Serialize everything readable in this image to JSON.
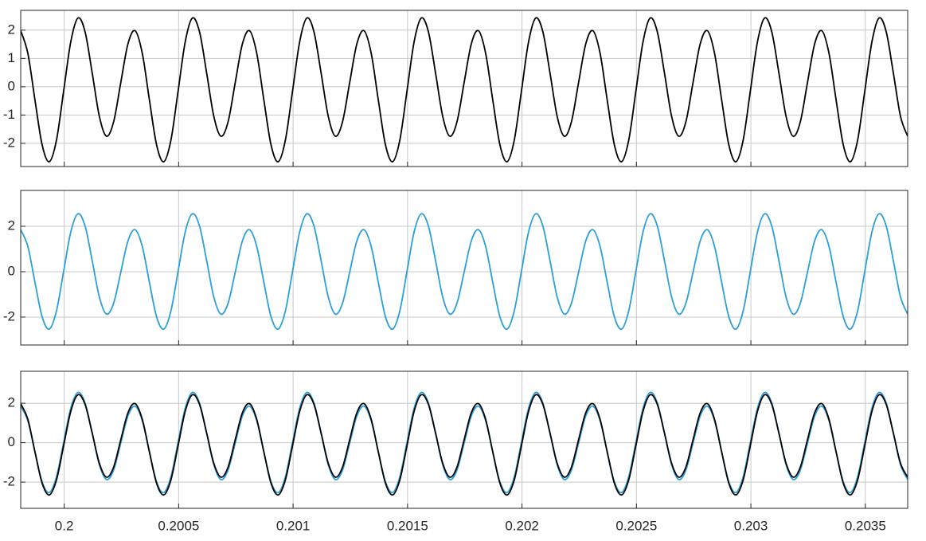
{
  "chart_data": [
    {
      "type": "line",
      "show_xtick_labels": false,
      "grid": true,
      "xlim": [
        0.19981,
        0.203685
      ],
      "xticks": [
        0.2,
        0.2005,
        0.201,
        0.2015,
        0.202,
        0.2025,
        0.203,
        0.2035
      ],
      "ylim": [
        -2.82,
        2.7
      ],
      "yticks": [
        -2,
        -1,
        0,
        1,
        2
      ],
      "x": [
        0.19981,
        0.19984125,
        0.1998725,
        0.19990375,
        0.199935,
        0.19996625,
        0.1999975,
        0.20002875,
        0.20006,
        0.20009125,
        0.2001225,
        0.20015375,
        0.200185,
        0.20021625,
        0.2002475,
        0.20027875,
        0.20031,
        0.20034125,
        0.2003725,
        0.20040375,
        0.200435,
        0.20046625,
        0.2004975,
        0.20052875,
        0.20056,
        0.20059125,
        0.2006225,
        0.20065375,
        0.200685,
        0.20071625,
        0.2007475,
        0.20077875,
        0.20081,
        0.20084125,
        0.2008725,
        0.20090375,
        0.200935,
        0.20096625,
        0.2009975,
        0.20102875,
        0.20106,
        0.20109125,
        0.2011225,
        0.20115375,
        0.201185,
        0.20121625,
        0.2012475,
        0.20127875,
        0.20131,
        0.20134125,
        0.2013725,
        0.20140375,
        0.201435,
        0.20146625,
        0.2014975,
        0.20152875,
        0.20156,
        0.20159125,
        0.2016225,
        0.20165375,
        0.201685,
        0.20171625,
        0.2017475,
        0.20177875,
        0.20181,
        0.20184125,
        0.2018725,
        0.20190375,
        0.201935,
        0.20196625,
        0.2019975,
        0.20202875,
        0.20206,
        0.20209125,
        0.2021225,
        0.20215375,
        0.202185,
        0.20221625,
        0.2022475,
        0.20227875,
        0.20231,
        0.20234125,
        0.2023725,
        0.20240375,
        0.202435,
        0.20246625,
        0.2024975,
        0.20252875,
        0.20256,
        0.20259125,
        0.2026225,
        0.20265375,
        0.202685,
        0.20271625,
        0.2027475,
        0.20277875,
        0.20281,
        0.20284125,
        0.2028725,
        0.20290375,
        0.202935,
        0.20296625,
        0.2029975,
        0.20302875,
        0.20306,
        0.20309125,
        0.2031225,
        0.20315375,
        0.203185,
        0.20321625,
        0.2032475,
        0.20327875,
        0.20331,
        0.20334125,
        0.2033725,
        0.20340375,
        0.203435,
        0.20346625,
        0.2034975,
        0.20352875,
        0.20356,
        0.20359125,
        0.2036225,
        0.20365375,
        0.203685
      ],
      "series": [
        {
          "color": "#000000",
          "values": [
            1.98,
            1.18,
            -0.48,
            -2.06,
            -2.65,
            -1.89,
            -0.16,
            1.59,
            2.43,
            1.94,
            0.48,
            -1.05,
            -1.75,
            -1.23,
            0.16,
            1.52,
            1.98,
            1.18,
            -0.48,
            -2.06,
            -2.65,
            -1.89,
            -0.16,
            1.59,
            2.43,
            1.94,
            0.48,
            -1.05,
            -1.75,
            -1.23,
            0.16,
            1.52,
            1.98,
            1.18,
            -0.48,
            -2.06,
            -2.65,
            -1.89,
            -0.16,
            1.59,
            2.43,
            1.94,
            0.48,
            -1.05,
            -1.75,
            -1.23,
            0.16,
            1.52,
            1.98,
            1.18,
            -0.48,
            -2.06,
            -2.65,
            -1.89,
            -0.16,
            1.59,
            2.43,
            1.94,
            0.48,
            -1.05,
            -1.75,
            -1.23,
            0.16,
            1.52,
            1.98,
            1.18,
            -0.48,
            -2.06,
            -2.65,
            -1.89,
            -0.16,
            1.59,
            2.43,
            1.94,
            0.48,
            -1.05,
            -1.75,
            -1.23,
            0.16,
            1.52,
            1.98,
            1.18,
            -0.48,
            -2.06,
            -2.65,
            -1.89,
            -0.16,
            1.59,
            2.43,
            1.94,
            0.48,
            -1.05,
            -1.75,
            -1.23,
            0.16,
            1.52,
            1.98,
            1.18,
            -0.48,
            -2.06,
            -2.65,
            -1.89,
            -0.16,
            1.59,
            2.43,
            1.94,
            0.48,
            -1.05,
            -1.75,
            -1.23,
            0.16,
            1.52,
            1.98,
            1.18,
            -0.48,
            -2.06,
            -2.65,
            -1.89,
            -0.16,
            1.59,
            2.43,
            1.94,
            0.48,
            -1.05,
            -1.75
          ]
        }
      ]
    },
    {
      "type": "line",
      "show_xtick_labels": false,
      "grid": true,
      "xlim": [
        0.19981,
        0.203685
      ],
      "xticks": [
        0.2,
        0.2005,
        0.201,
        0.2015,
        0.202,
        0.2025,
        0.203,
        0.2035
      ],
      "ylim": [
        -3.23,
        3.58
      ],
      "yticks": [
        -2,
        0,
        2
      ],
      "x": [
        0.19981,
        0.19984125,
        0.1998725,
        0.19990375,
        0.199935,
        0.19996625,
        0.1999975,
        0.20002875,
        0.20006,
        0.20009125,
        0.2001225,
        0.20015375,
        0.200185,
        0.20021625,
        0.2002475,
        0.20027875,
        0.20031,
        0.20034125,
        0.2003725,
        0.20040375,
        0.200435,
        0.20046625,
        0.2004975,
        0.20052875,
        0.20056,
        0.20059125,
        0.2006225,
        0.20065375,
        0.200685,
        0.20071625,
        0.2007475,
        0.20077875,
        0.20081,
        0.20084125,
        0.2008725,
        0.20090375,
        0.200935,
        0.20096625,
        0.2009975,
        0.20102875,
        0.20106,
        0.20109125,
        0.2011225,
        0.20115375,
        0.201185,
        0.20121625,
        0.2012475,
        0.20127875,
        0.20131,
        0.20134125,
        0.2013725,
        0.20140375,
        0.201435,
        0.20146625,
        0.2014975,
        0.20152875,
        0.20156,
        0.20159125,
        0.2016225,
        0.20165375,
        0.201685,
        0.20171625,
        0.2017475,
        0.20177875,
        0.20181,
        0.20184125,
        0.2018725,
        0.20190375,
        0.201935,
        0.20196625,
        0.2019975,
        0.20202875,
        0.20206,
        0.20209125,
        0.2021225,
        0.20215375,
        0.202185,
        0.20221625,
        0.2022475,
        0.20227875,
        0.20231,
        0.20234125,
        0.2023725,
        0.20240375,
        0.202435,
        0.20246625,
        0.2024975,
        0.20252875,
        0.20256,
        0.20259125,
        0.2026225,
        0.20265375,
        0.202685,
        0.20271625,
        0.2027475,
        0.20277875,
        0.20281,
        0.20284125,
        0.2028725,
        0.20290375,
        0.202935,
        0.20296625,
        0.2029975,
        0.20302875,
        0.20306,
        0.20309125,
        0.2031225,
        0.20315375,
        0.203185,
        0.20321625,
        0.2032475,
        0.20327875,
        0.20331,
        0.20334125,
        0.2033725,
        0.20340375,
        0.203435,
        0.20346625,
        0.2034975,
        0.20352875,
        0.20356,
        0.20359125,
        0.2036225,
        0.20365375,
        0.203685
      ],
      "series": [
        {
          "color": "#2a9fd8",
          "values": [
            1.85,
            1.11,
            -0.48,
            -1.99,
            -2.53,
            -1.73,
            0.01,
            1.75,
            2.55,
            2.01,
            0.48,
            -1.12,
            -1.87,
            -1.38,
            -0.01,
            1.36,
            1.85,
            1.11,
            -0.48,
            -1.99,
            -2.53,
            -1.73,
            0.01,
            1.75,
            2.55,
            2.01,
            0.48,
            -1.12,
            -1.87,
            -1.38,
            -0.01,
            1.36,
            1.85,
            1.11,
            -0.48,
            -1.99,
            -2.53,
            -1.73,
            0.01,
            1.75,
            2.55,
            2.01,
            0.48,
            -1.12,
            -1.87,
            -1.38,
            -0.01,
            1.36,
            1.85,
            1.11,
            -0.48,
            -1.99,
            -2.53,
            -1.73,
            0.01,
            1.75,
            2.55,
            2.01,
            0.48,
            -1.12,
            -1.87,
            -1.38,
            -0.01,
            1.36,
            1.85,
            1.11,
            -0.48,
            -1.99,
            -2.53,
            -1.73,
            0.01,
            1.75,
            2.55,
            2.01,
            0.48,
            -1.12,
            -1.87,
            -1.38,
            -0.01,
            1.36,
            1.85,
            1.11,
            -0.48,
            -1.99,
            -2.53,
            -1.73,
            0.01,
            1.75,
            2.55,
            2.01,
            0.48,
            -1.12,
            -1.87,
            -1.38,
            -0.01,
            1.36,
            1.85,
            1.11,
            -0.48,
            -1.99,
            -2.53,
            -1.73,
            0.01,
            1.75,
            2.55,
            2.01,
            0.48,
            -1.12,
            -1.87,
            -1.38,
            -0.01,
            1.36,
            1.85,
            1.11,
            -0.48,
            -1.99,
            -2.53,
            -1.73,
            0.01,
            1.75,
            2.55,
            2.01,
            0.48,
            -1.12,
            -1.87
          ]
        }
      ]
    },
    {
      "type": "line",
      "show_xtick_labels": true,
      "grid": true,
      "xlim": [
        0.19981,
        0.203685
      ],
      "xticks": [
        0.2,
        0.2005,
        0.201,
        0.2015,
        0.202,
        0.2025,
        0.203,
        0.2035
      ],
      "ylim": [
        -3.33,
        3.62
      ],
      "yticks": [
        -2,
        0,
        2
      ],
      "x": [
        0.19981,
        0.19984125,
        0.1998725,
        0.19990375,
        0.199935,
        0.19996625,
        0.1999975,
        0.20002875,
        0.20006,
        0.20009125,
        0.2001225,
        0.20015375,
        0.200185,
        0.20021625,
        0.2002475,
        0.20027875,
        0.20031,
        0.20034125,
        0.2003725,
        0.20040375,
        0.200435,
        0.20046625,
        0.2004975,
        0.20052875,
        0.20056,
        0.20059125,
        0.2006225,
        0.20065375,
        0.200685,
        0.20071625,
        0.2007475,
        0.20077875,
        0.20081,
        0.20084125,
        0.2008725,
        0.20090375,
        0.200935,
        0.20096625,
        0.2009975,
        0.20102875,
        0.20106,
        0.20109125,
        0.2011225,
        0.20115375,
        0.201185,
        0.20121625,
        0.2012475,
        0.20127875,
        0.20131,
        0.20134125,
        0.2013725,
        0.20140375,
        0.201435,
        0.20146625,
        0.2014975,
        0.20152875,
        0.20156,
        0.20159125,
        0.2016225,
        0.20165375,
        0.201685,
        0.20171625,
        0.2017475,
        0.20177875,
        0.20181,
        0.20184125,
        0.2018725,
        0.20190375,
        0.201935,
        0.20196625,
        0.2019975,
        0.20202875,
        0.20206,
        0.20209125,
        0.2021225,
        0.20215375,
        0.202185,
        0.20221625,
        0.2022475,
        0.20227875,
        0.20231,
        0.20234125,
        0.2023725,
        0.20240375,
        0.202435,
        0.20246625,
        0.2024975,
        0.20252875,
        0.20256,
        0.20259125,
        0.2026225,
        0.20265375,
        0.202685,
        0.20271625,
        0.2027475,
        0.20277875,
        0.20281,
        0.20284125,
        0.2028725,
        0.20290375,
        0.202935,
        0.20296625,
        0.2029975,
        0.20302875,
        0.20306,
        0.20309125,
        0.2031225,
        0.20315375,
        0.203185,
        0.20321625,
        0.2032475,
        0.20327875,
        0.20331,
        0.20334125,
        0.2033725,
        0.20340375,
        0.203435,
        0.20346625,
        0.2034975,
        0.20352875,
        0.20356,
        0.20359125,
        0.2036225,
        0.20365375,
        0.203685
      ],
      "series": [
        {
          "color": "#2a9fd8",
          "values": [
            1.85,
            1.11,
            -0.48,
            -1.99,
            -2.53,
            -1.73,
            0.01,
            1.75,
            2.55,
            2.01,
            0.48,
            -1.12,
            -1.87,
            -1.38,
            -0.01,
            1.36,
            1.85,
            1.11,
            -0.48,
            -1.99,
            -2.53,
            -1.73,
            0.01,
            1.75,
            2.55,
            2.01,
            0.48,
            -1.12,
            -1.87,
            -1.38,
            -0.01,
            1.36,
            1.85,
            1.11,
            -0.48,
            -1.99,
            -2.53,
            -1.73,
            0.01,
            1.75,
            2.55,
            2.01,
            0.48,
            -1.12,
            -1.87,
            -1.38,
            -0.01,
            1.36,
            1.85,
            1.11,
            -0.48,
            -1.99,
            -2.53,
            -1.73,
            0.01,
            1.75,
            2.55,
            2.01,
            0.48,
            -1.12,
            -1.87,
            -1.38,
            -0.01,
            1.36,
            1.85,
            1.11,
            -0.48,
            -1.99,
            -2.53,
            -1.73,
            0.01,
            1.75,
            2.55,
            2.01,
            0.48,
            -1.12,
            -1.87,
            -1.38,
            -0.01,
            1.36,
            1.85,
            1.11,
            -0.48,
            -1.99,
            -2.53,
            -1.73,
            0.01,
            1.75,
            2.55,
            2.01,
            0.48,
            -1.12,
            -1.87,
            -1.38,
            -0.01,
            1.36,
            1.85,
            1.11,
            -0.48,
            -1.99,
            -2.53,
            -1.73,
            0.01,
            1.75,
            2.55,
            2.01,
            0.48,
            -1.12,
            -1.87,
            -1.38,
            -0.01,
            1.36,
            1.85,
            1.11,
            -0.48,
            -1.99,
            -2.53,
            -1.73,
            0.01,
            1.75,
            2.55,
            2.01,
            0.48,
            -1.12,
            -1.87
          ]
        },
        {
          "color": "#000000",
          "values": [
            1.98,
            1.18,
            -0.48,
            -2.06,
            -2.65,
            -1.89,
            -0.16,
            1.59,
            2.43,
            1.94,
            0.48,
            -1.05,
            -1.75,
            -1.23,
            0.16,
            1.52,
            1.98,
            1.18,
            -0.48,
            -2.06,
            -2.65,
            -1.89,
            -0.16,
            1.59,
            2.43,
            1.94,
            0.48,
            -1.05,
            -1.75,
            -1.23,
            0.16,
            1.52,
            1.98,
            1.18,
            -0.48,
            -2.06,
            -2.65,
            -1.89,
            -0.16,
            1.59,
            2.43,
            1.94,
            0.48,
            -1.05,
            -1.75,
            -1.23,
            0.16,
            1.52,
            1.98,
            1.18,
            -0.48,
            -2.06,
            -2.65,
            -1.89,
            -0.16,
            1.59,
            2.43,
            1.94,
            0.48,
            -1.05,
            -1.75,
            -1.23,
            0.16,
            1.52,
            1.98,
            1.18,
            -0.48,
            -2.06,
            -2.65,
            -1.89,
            -0.16,
            1.59,
            2.43,
            1.94,
            0.48,
            -1.05,
            -1.75,
            -1.23,
            0.16,
            1.52,
            1.98,
            1.18,
            -0.48,
            -2.06,
            -2.65,
            -1.89,
            -0.16,
            1.59,
            2.43,
            1.94,
            0.48,
            -1.05,
            -1.75,
            -1.23,
            0.16,
            1.52,
            1.98,
            1.18,
            -0.48,
            -2.06,
            -2.65,
            -1.89,
            -0.16,
            1.59,
            2.43,
            1.94,
            0.48,
            -1.05,
            -1.75,
            -1.23,
            0.16,
            1.52,
            1.98,
            1.18,
            -0.48,
            -2.06,
            -2.65,
            -1.89,
            -0.16,
            1.59,
            2.43,
            1.94,
            0.48,
            -1.05,
            -1.75
          ]
        }
      ]
    }
  ]
}
